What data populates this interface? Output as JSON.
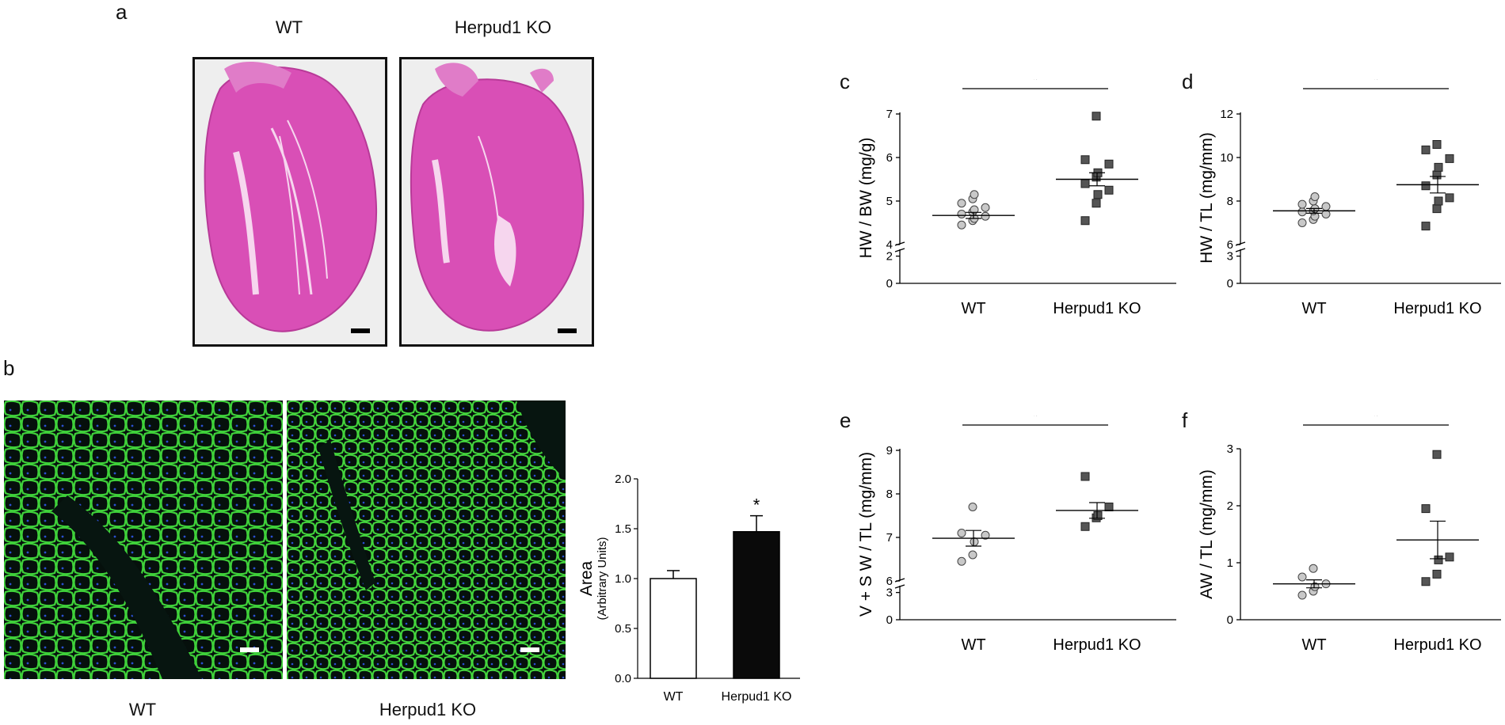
{
  "panels": {
    "a": {
      "letter": "a",
      "labels": [
        "WT",
        "Herpud1 KO"
      ]
    },
    "b": {
      "letter": "b",
      "labels": [
        "WT",
        "Herpud1 KO"
      ]
    },
    "c": {
      "letter": "c"
    },
    "d": {
      "letter": "d"
    },
    "e": {
      "letter": "e"
    },
    "f": {
      "letter": "f"
    }
  },
  "colors": {
    "he_stain": "#d94fb6",
    "he_stain_dark": "#b83a98",
    "he_background": "#eeeeee",
    "if_background": "#050a0a",
    "if_membrane": "#3fd13a",
    "if_nuclei": "#2a4fd0",
    "wt_marker": "#c8c8c8",
    "ko_marker": "#555555",
    "bar_wt": "#ffffff",
    "bar_ko": "#0a0a0a"
  },
  "chart_data": [
    {
      "id": "b-bar",
      "type": "bar",
      "categories": [
        "WT",
        "Herpud1 KO"
      ],
      "values": [
        1.0,
        1.47
      ],
      "errors": [
        0.08,
        0.16
      ],
      "ylabel": "Area",
      "ylabel_sub": "(Arbitrary Units)",
      "ylim": [
        0,
        2.0
      ],
      "yticks": [
        "0.0",
        "0.5",
        "1.0",
        "1.5",
        "2.0"
      ],
      "ytick_values": [
        0,
        0.5,
        1.0,
        1.5,
        2.0
      ],
      "significance": [
        "",
        "*"
      ]
    },
    {
      "id": "c",
      "type": "scatter",
      "ylabel": "HW / BW (mg/g)",
      "categories": [
        "WT",
        "Herpud1 KO"
      ],
      "significance": "*",
      "lower_ticks": [
        "0",
        "2"
      ],
      "lower_tick_values": [
        0,
        2
      ],
      "upper_ticks": [
        "4",
        "5",
        "6",
        "7"
      ],
      "upper_tick_values": [
        4,
        5,
        6,
        7
      ],
      "upper_range": [
        4,
        7
      ],
      "series": [
        {
          "values": [
            4.45,
            4.55,
            4.6,
            4.65,
            4.7,
            4.75,
            4.8,
            4.85,
            4.95,
            5.05,
            5.15
          ],
          "mean": 4.67,
          "sem": 0.07
        },
        {
          "values": [
            4.55,
            4.95,
            5.15,
            5.25,
            5.4,
            5.55,
            5.65,
            5.85,
            5.95,
            6.95
          ],
          "mean": 5.5,
          "sem": 0.15
        }
      ]
    },
    {
      "id": "d",
      "type": "scatter",
      "ylabel": "HW / TL (mg/mm)",
      "categories": [
        "WT",
        "Herpud1 KO"
      ],
      "significance": "*",
      "lower_ticks": [
        "0",
        "3"
      ],
      "lower_tick_values": [
        0,
        3
      ],
      "upper_ticks": [
        "6",
        "8",
        "10",
        "12"
      ],
      "upper_tick_values": [
        6,
        8,
        10,
        12
      ],
      "upper_range": [
        6,
        12
      ],
      "series": [
        {
          "values": [
            7.0,
            7.15,
            7.3,
            7.4,
            7.5,
            7.55,
            7.65,
            7.75,
            7.85,
            8.0,
            8.2
          ],
          "mean": 7.55,
          "sem": 0.11
        },
        {
          "values": [
            6.85,
            7.65,
            8.0,
            8.15,
            8.7,
            9.2,
            9.55,
            9.95,
            10.35,
            10.6
          ],
          "mean": 8.75,
          "sem": 0.38
        }
      ]
    },
    {
      "id": "e",
      "type": "scatter",
      "ylabel": "V + S W / TL (mg/mm)",
      "categories": [
        "WT",
        "Herpud1 KO"
      ],
      "significance": "*",
      "lower_ticks": [
        "0",
        "3"
      ],
      "lower_tick_values": [
        0,
        3
      ],
      "upper_ticks": [
        "6",
        "7",
        "8",
        "9"
      ],
      "upper_tick_values": [
        6,
        7,
        8,
        9
      ],
      "upper_range": [
        6,
        9
      ],
      "series": [
        {
          "values": [
            6.45,
            6.6,
            6.9,
            7.05,
            7.1,
            7.7
          ],
          "mean": 6.98,
          "sem": 0.18
        },
        {
          "values": [
            7.25,
            7.45,
            7.5,
            7.7,
            8.4
          ],
          "mean": 7.62,
          "sem": 0.18
        }
      ]
    },
    {
      "id": "f",
      "type": "scatter",
      "ylabel": "AW / TL (mg/mm)",
      "categories": [
        "WT",
        "Herpud1 KO"
      ],
      "significance": "*",
      "ticks": [
        "0",
        "1",
        "2",
        "3"
      ],
      "tick_values": [
        0,
        1,
        2,
        3
      ],
      "ylim": [
        0,
        3
      ],
      "series": [
        {
          "values": [
            0.43,
            0.5,
            0.58,
            0.63,
            0.75,
            0.9
          ],
          "mean": 0.63,
          "sem": 0.07
        },
        {
          "values": [
            0.67,
            0.8,
            1.05,
            1.1,
            1.95,
            2.9
          ],
          "mean": 1.4,
          "sem": 0.33
        }
      ]
    }
  ]
}
